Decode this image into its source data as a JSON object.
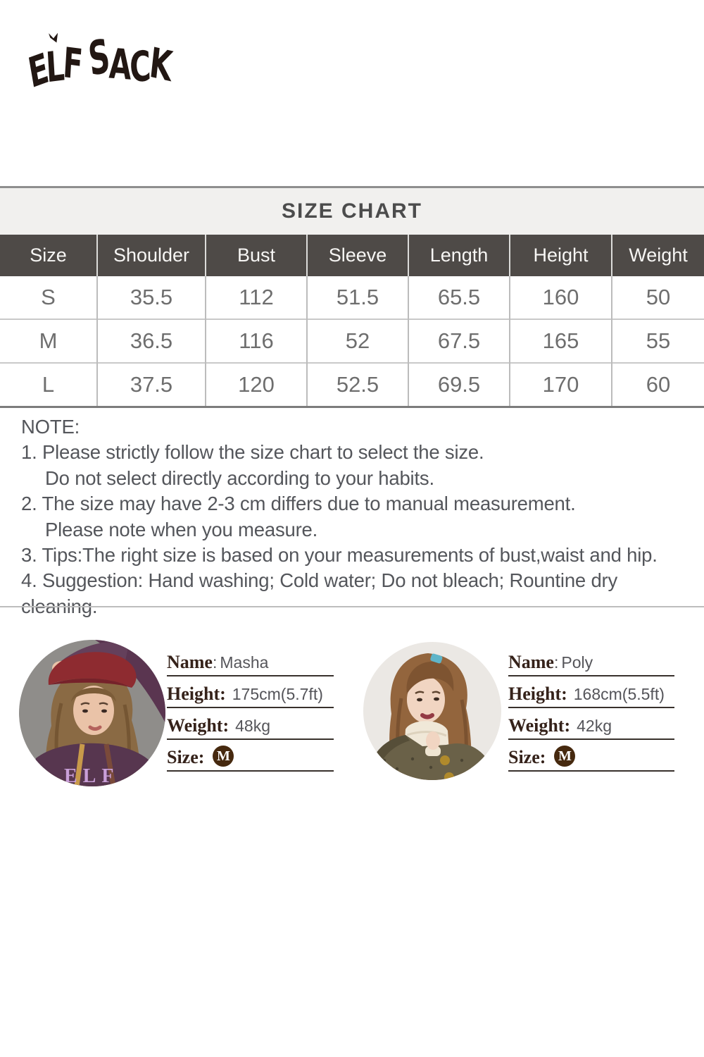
{
  "brand": {
    "name": "ELF SACK"
  },
  "size_chart": {
    "title": "SIZE CHART",
    "columns": [
      "Size",
      "Shoulder",
      "Bust",
      "Sleeve",
      "Length",
      "Height",
      "Weight"
    ],
    "rows": [
      [
        "S",
        "35.5",
        "112",
        "51.5",
        "65.5",
        "160",
        "50"
      ],
      [
        "M",
        "36.5",
        "116",
        "52",
        "67.5",
        "165",
        "55"
      ],
      [
        "L",
        "37.5",
        "120",
        "52.5",
        "69.5",
        "170",
        "60"
      ]
    ]
  },
  "notes": {
    "heading": "NOTE:",
    "lines": [
      {
        "text": "1. Please strictly follow the size chart to select the size.",
        "indent": false
      },
      {
        "text": "Do not select directly according to your habits.",
        "indent": true
      },
      {
        "text": "2. The size may have 2-3 cm differs due to manual measurement.",
        "indent": false
      },
      {
        "text": "Please note when you measure.",
        "indent": true
      },
      {
        "text": "3. Tips:The right size is based on your measurements of bust,waist and hip.",
        "indent": false
      },
      {
        "text": "4. Suggestion: Hand washing; Cold water; Do not bleach; Rountine dry cleaning.",
        "indent": false
      }
    ]
  },
  "models": [
    {
      "photo_text": "ELF",
      "fields": [
        {
          "label": "Name",
          "separator": ":",
          "value": "Masha"
        },
        {
          "label": "Height:",
          "separator": "",
          "value": "175cm(5.7ft)"
        },
        {
          "label": "Weight:",
          "separator": "",
          "value": "48kg"
        },
        {
          "label": "Size:",
          "separator": "",
          "value": "M"
        }
      ]
    },
    {
      "photo_text": "",
      "fields": [
        {
          "label": "Name",
          "separator": ":",
          "value": "Poly"
        },
        {
          "label": "Height:",
          "separator": "",
          "value": "168cm(5.5ft)"
        },
        {
          "label": "Weight:",
          "separator": "",
          "value": "42kg"
        },
        {
          "label": "Size:",
          "separator": "",
          "value": "M"
        }
      ]
    }
  ],
  "colors": {
    "page_bg": "#ffffff",
    "logo_color": "#221713",
    "chart_top_border": "#8e8e8e",
    "chart_title_bg": "#f1f0ee",
    "chart_title_text": "#4c4c4c",
    "table_header_bg": "#4e4a47",
    "table_header_text": "#f7f6f4",
    "table_cell_text": "#6e6e6e",
    "table_grid": "#bcbcbc",
    "table_bottom_border": "#7c7c7c",
    "note_text": "#54565b",
    "section_divider": "#bdbdbd",
    "label_brown": "#35221a",
    "value_gray": "#55555a",
    "underline": "#38312c",
    "badge_bg": "#46290f",
    "badge_text": "#ffffff"
  }
}
